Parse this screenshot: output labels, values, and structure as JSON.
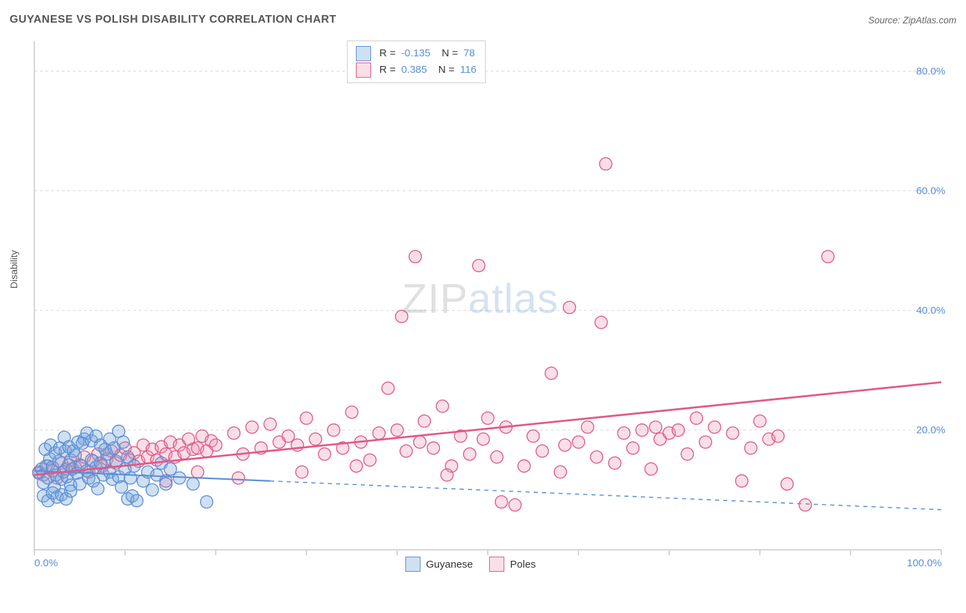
{
  "title": "GUYANESE VS POLISH DISABILITY CORRELATION CHART",
  "source": "Source: ZipAtlas.com",
  "y_axis_label": "Disability",
  "watermark": {
    "part1": "ZIP",
    "part2": "atlas"
  },
  "chart": {
    "type": "scatter",
    "xlim": [
      0,
      100
    ],
    "ylim": [
      0,
      85
    ],
    "x_ticks": [
      0,
      10,
      20,
      30,
      40,
      50,
      60,
      70,
      80,
      90,
      100
    ],
    "y_ticks": [
      20,
      40,
      60,
      80
    ],
    "x_tick_labels": {
      "0": "0.0%",
      "100": "100.0%"
    },
    "y_tick_labels": {
      "20": "20.0%",
      "40": "40.0%",
      "60": "60.0%",
      "80": "80.0%"
    },
    "background_color": "#ffffff",
    "grid_color": "#d8d8d8",
    "axis_color": "#c8c8c8",
    "tick_label_color": "#5b8fd6",
    "marker_radius": 9,
    "marker_stroke_width": 1.4,
    "series": [
      {
        "name": "Guyanese",
        "fill": "rgba(120,165,220,0.35)",
        "stroke": "#5b8fd6",
        "r_value": "-0.135",
        "n_value": "78",
        "trend": {
          "solid": {
            "x1": 0,
            "y1": 13.2,
            "x2": 26,
            "y2": 11.5
          },
          "dashed": {
            "x1": 26,
            "y1": 11.5,
            "x2": 100,
            "y2": 6.7
          },
          "width": 2.2
        },
        "points": [
          [
            0.5,
            12.8
          ],
          [
            0.8,
            13.5
          ],
          [
            1.0,
            11.2
          ],
          [
            1.3,
            14.0
          ],
          [
            1.5,
            12.0
          ],
          [
            1.7,
            15.2
          ],
          [
            2.0,
            13.8
          ],
          [
            2.2,
            10.5
          ],
          [
            2.4,
            12.5
          ],
          [
            2.7,
            14.8
          ],
          [
            3.0,
            11.8
          ],
          [
            3.2,
            13.0
          ],
          [
            3.4,
            16.5
          ],
          [
            3.6,
            12.2
          ],
          [
            3.8,
            14.2
          ],
          [
            4.0,
            10.8
          ],
          [
            4.2,
            13.5
          ],
          [
            4.5,
            15.8
          ],
          [
            4.7,
            12.8
          ],
          [
            5.0,
            11.0
          ],
          [
            5.2,
            14.0
          ],
          [
            5.5,
            18.5
          ],
          [
            5.8,
            13.2
          ],
          [
            6.0,
            12.0
          ],
          [
            6.3,
            15.0
          ],
          [
            6.5,
            11.5
          ],
          [
            6.8,
            13.8
          ],
          [
            7.0,
            10.2
          ],
          [
            7.3,
            14.5
          ],
          [
            7.6,
            12.5
          ],
          [
            8.0,
            16.0
          ],
          [
            8.3,
            13.0
          ],
          [
            8.6,
            11.8
          ],
          [
            9.0,
            14.8
          ],
          [
            9.3,
            12.2
          ],
          [
            9.6,
            10.5
          ],
          [
            10.0,
            13.5
          ],
          [
            10.3,
            15.5
          ],
          [
            10.6,
            12.0
          ],
          [
            11.0,
            14.0
          ],
          [
            1.0,
            9.0
          ],
          [
            1.5,
            8.2
          ],
          [
            2.0,
            9.5
          ],
          [
            2.5,
            8.8
          ],
          [
            3.0,
            9.2
          ],
          [
            3.5,
            8.5
          ],
          [
            4.0,
            9.8
          ],
          [
            1.2,
            16.8
          ],
          [
            1.8,
            17.5
          ],
          [
            2.3,
            16.2
          ],
          [
            2.8,
            17.0
          ],
          [
            3.3,
            18.8
          ],
          [
            3.8,
            17.2
          ],
          [
            4.3,
            16.5
          ],
          [
            4.8,
            18.0
          ],
          [
            5.3,
            17.8
          ],
          [
            5.8,
            19.5
          ],
          [
            6.3,
            18.2
          ],
          [
            6.8,
            19.0
          ],
          [
            7.3,
            17.5
          ],
          [
            7.8,
            16.8
          ],
          [
            8.3,
            18.5
          ],
          [
            8.8,
            17.0
          ],
          [
            9.3,
            19.8
          ],
          [
            9.8,
            18.0
          ],
          [
            10.3,
            8.5
          ],
          [
            10.8,
            9.0
          ],
          [
            11.3,
            8.2
          ],
          [
            12.0,
            11.5
          ],
          [
            12.5,
            13.0
          ],
          [
            13.0,
            10.0
          ],
          [
            13.5,
            12.5
          ],
          [
            14.0,
            14.5
          ],
          [
            14.5,
            11.0
          ],
          [
            15.0,
            13.5
          ],
          [
            16.0,
            12.0
          ],
          [
            17.5,
            11.0
          ],
          [
            19.0,
            8.0
          ]
        ]
      },
      {
        "name": "Poles",
        "fill": "rgba(240,150,175,0.30)",
        "stroke": "#e05a87",
        "r_value": "0.385",
        "n_value": "116",
        "trend": {
          "solid": {
            "x1": 0,
            "y1": 12.5,
            "x2": 100,
            "y2": 28.0
          },
          "dashed": null,
          "width": 2.8
        },
        "points": [
          [
            0.5,
            13.0
          ],
          [
            1.0,
            12.5
          ],
          [
            1.5,
            14.0
          ],
          [
            2.0,
            13.2
          ],
          [
            2.5,
            12.0
          ],
          [
            3.0,
            14.5
          ],
          [
            3.5,
            13.5
          ],
          [
            4.0,
            15.0
          ],
          [
            4.5,
            13.8
          ],
          [
            5.0,
            14.2
          ],
          [
            5.5,
            15.5
          ],
          [
            6.0,
            13.0
          ],
          [
            6.5,
            14.8
          ],
          [
            7.0,
            16.0
          ],
          [
            7.5,
            14.0
          ],
          [
            8.0,
            15.2
          ],
          [
            8.5,
            16.5
          ],
          [
            9.0,
            14.5
          ],
          [
            9.5,
            15.8
          ],
          [
            10.0,
            17.0
          ],
          [
            10.5,
            15.0
          ],
          [
            11.0,
            16.2
          ],
          [
            11.5,
            14.8
          ],
          [
            12.0,
            17.5
          ],
          [
            12.5,
            15.5
          ],
          [
            13.0,
            16.8
          ],
          [
            13.5,
            15.0
          ],
          [
            14.0,
            17.2
          ],
          [
            14.5,
            16.0
          ],
          [
            15.0,
            18.0
          ],
          [
            15.5,
            15.5
          ],
          [
            16.0,
            17.5
          ],
          [
            16.5,
            16.2
          ],
          [
            17.0,
            18.5
          ],
          [
            17.5,
            16.8
          ],
          [
            18.0,
            17.0
          ],
          [
            18.5,
            19.0
          ],
          [
            19.0,
            16.5
          ],
          [
            19.5,
            18.2
          ],
          [
            20.0,
            17.5
          ],
          [
            22.0,
            19.5
          ],
          [
            23.0,
            16.0
          ],
          [
            24.0,
            20.5
          ],
          [
            25.0,
            17.0
          ],
          [
            26.0,
            21.0
          ],
          [
            27.0,
            18.0
          ],
          [
            28.0,
            19.0
          ],
          [
            29.0,
            17.5
          ],
          [
            30.0,
            22.0
          ],
          [
            31.0,
            18.5
          ],
          [
            32.0,
            16.0
          ],
          [
            33.0,
            20.0
          ],
          [
            34.0,
            17.0
          ],
          [
            35.0,
            23.0
          ],
          [
            36.0,
            18.0
          ],
          [
            37.0,
            15.0
          ],
          [
            38.0,
            19.5
          ],
          [
            39.0,
            27.0
          ],
          [
            40.0,
            20.0
          ],
          [
            40.5,
            39.0
          ],
          [
            41.0,
            16.5
          ],
          [
            42.0,
            49.0
          ],
          [
            42.5,
            18.0
          ],
          [
            43.0,
            21.5
          ],
          [
            44.0,
            17.0
          ],
          [
            45.0,
            24.0
          ],
          [
            46.0,
            14.0
          ],
          [
            47.0,
            19.0
          ],
          [
            48.0,
            16.0
          ],
          [
            49.0,
            47.5
          ],
          [
            49.5,
            18.5
          ],
          [
            50.0,
            22.0
          ],
          [
            51.0,
            15.5
          ],
          [
            52.0,
            20.5
          ],
          [
            53.0,
            7.5
          ],
          [
            54.0,
            14.0
          ],
          [
            55.0,
            19.0
          ],
          [
            56.0,
            16.5
          ],
          [
            57.0,
            29.5
          ],
          [
            58.0,
            13.0
          ],
          [
            59.0,
            40.5
          ],
          [
            60.0,
            18.0
          ],
          [
            61.0,
            20.5
          ],
          [
            62.0,
            15.5
          ],
          [
            62.5,
            38.0
          ],
          [
            63.0,
            64.5
          ],
          [
            64.0,
            14.5
          ],
          [
            65.0,
            19.5
          ],
          [
            66.0,
            17.0
          ],
          [
            67.0,
            20.0
          ],
          [
            68.0,
            13.5
          ],
          [
            69.0,
            18.5
          ],
          [
            70.0,
            19.5
          ],
          [
            72.0,
            16.0
          ],
          [
            73.0,
            22.0
          ],
          [
            74.0,
            18.0
          ],
          [
            75.0,
            20.5
          ],
          [
            77.0,
            19.5
          ],
          [
            79.0,
            17.0
          ],
          [
            80.0,
            21.5
          ],
          [
            81.0,
            18.5
          ],
          [
            82.0,
            19.0
          ],
          [
            83.0,
            11.0
          ],
          [
            85.0,
            7.5
          ],
          [
            87.5,
            49.0
          ],
          [
            78.0,
            11.5
          ],
          [
            45.5,
            12.5
          ],
          [
            51.5,
            8.0
          ],
          [
            22.5,
            12.0
          ],
          [
            18.0,
            13.0
          ],
          [
            14.5,
            11.5
          ],
          [
            35.5,
            14.0
          ],
          [
            29.5,
            13.0
          ],
          [
            68.5,
            20.5
          ],
          [
            71.0,
            20.0
          ],
          [
            58.5,
            17.5
          ]
        ]
      }
    ],
    "legend_bottom": [
      {
        "label": "Guyanese",
        "fill": "rgba(120,165,220,0.35)",
        "stroke": "#5b8fd6"
      },
      {
        "label": "Poles",
        "fill": "rgba(240,150,175,0.30)",
        "stroke": "#e05a87"
      }
    ]
  }
}
